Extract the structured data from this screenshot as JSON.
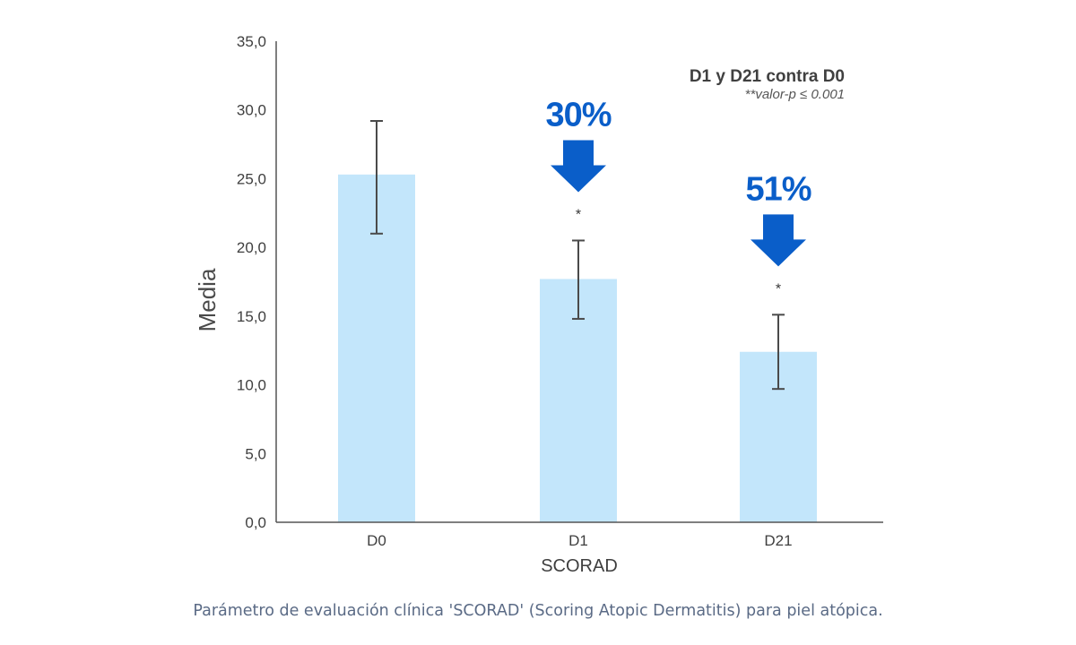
{
  "colors": {
    "bar_fill": "#c3e6fb",
    "arrow_fill": "#0a5ec9",
    "axis": "#555555",
    "error_bar": "#4a4a4a",
    "caption": "#5a6a85"
  },
  "icons": {
    "reduction_arrow": "arrow-down-icon"
  },
  "chart_data": {
    "type": "bar",
    "categories": [
      "D0",
      "D1",
      "D21"
    ],
    "values": [
      25.3,
      17.7,
      12.4
    ],
    "error_upper": [
      29.2,
      20.5,
      15.1
    ],
    "error_lower": [
      21.0,
      14.8,
      9.7
    ],
    "ylim": [
      0,
      35
    ],
    "yticks": [
      "0,0",
      "5,0",
      "10,0",
      "15,0",
      "20,0",
      "25,0",
      "30,0",
      "35,0"
    ],
    "ytick_values": [
      0,
      5,
      10,
      15,
      20,
      25,
      30,
      35
    ],
    "xlabel": "SCORAD",
    "ylabel": "Media",
    "grid": false,
    "significance_marks": [
      "",
      "*",
      "*"
    ],
    "reductions": [
      {
        "category": "D1",
        "label": "30%"
      },
      {
        "category": "D21",
        "label": "51%"
      }
    ],
    "legend": {
      "title": "D1 y D21 contra D0",
      "note": "**valor-p ≤ 0.001",
      "placement": "top-right"
    }
  },
  "caption": "Parámetro de evaluación clínica 'SCORAD' (Scoring Atopic Dermatitis) para piel atópica."
}
